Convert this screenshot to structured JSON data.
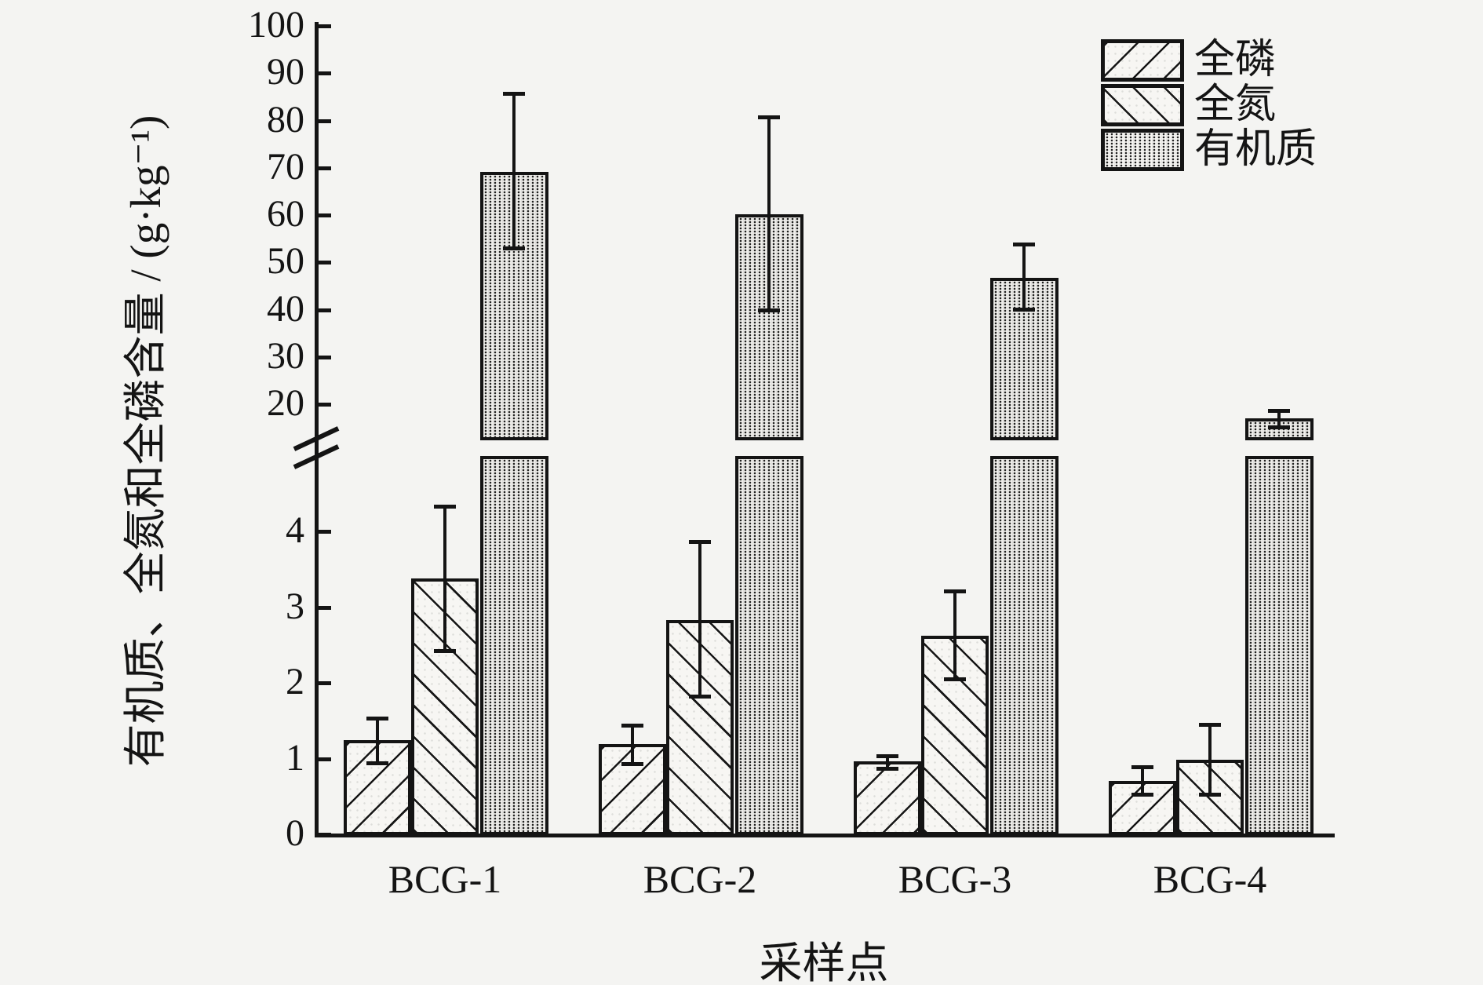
{
  "colors": {
    "ink": "#141414",
    "background": "#f4f4f2",
    "hatch_fill": "#f7f6f3",
    "organic_fill": "#d9d8d5"
  },
  "chart_data": {
    "type": "bar",
    "title": "",
    "xlabel": "采样点",
    "ylabel": "有机质、全氮和全磷含量 / (g·kg⁻¹)",
    "categories": [
      "BCG-1",
      "BCG-2",
      "BCG-3",
      "BCG-4"
    ],
    "series": [
      {
        "name": "全磷",
        "pattern": "diagonal-up-hatch",
        "values": [
          1.24,
          1.19,
          0.96,
          0.7
        ],
        "err_hi": [
          1.53,
          1.44,
          1.04,
          0.89
        ],
        "err_lo": [
          0.93,
          0.92,
          0.86,
          0.52
        ]
      },
      {
        "name": "全氮",
        "pattern": "diagonal-down-hatch",
        "values": [
          3.38,
          2.83,
          2.62,
          0.98
        ],
        "err_hi": [
          4.33,
          3.87,
          3.21,
          1.45
        ],
        "err_lo": [
          2.41,
          1.81,
          2.04,
          0.52
        ]
      },
      {
        "name": "有机质",
        "pattern": "dotted-gray",
        "values": [
          69.2,
          60.2,
          46.8,
          17.0
        ],
        "err_hi": [
          85.7,
          80.8,
          53.8,
          18.7
        ],
        "err_lo": [
          52.8,
          39.7,
          40.0,
          15.0
        ]
      }
    ],
    "axis_break": {
      "upper_ticks": [
        100,
        90,
        80,
        70,
        60,
        50,
        40,
        30,
        20
      ],
      "lower_ticks": [
        4,
        3,
        2,
        1,
        0
      ],
      "upper_range": [
        14,
        100
      ],
      "lower_range": [
        0,
        4.9
      ]
    },
    "grid": false,
    "legend_position": "top-right"
  }
}
